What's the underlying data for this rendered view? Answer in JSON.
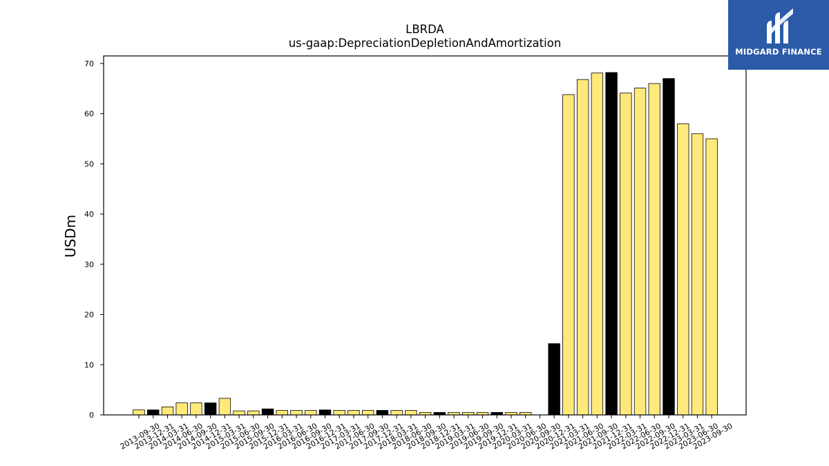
{
  "chart_data": {
    "type": "bar",
    "title": "LBRDA",
    "subtitle": "us-gaap:DepreciationDepletionAndAmortization",
    "ylabel": "USDm",
    "xlabel": "",
    "ylim": [
      0,
      71.5
    ],
    "yticks": [
      0,
      10,
      20,
      30,
      40,
      50,
      60,
      70
    ],
    "grid": false,
    "colors": {
      "quarter": "#ffe97a",
      "annual": "#000000",
      "edge": "#000000"
    },
    "categories": [
      "2013-09-30",
      "2013-12-31",
      "2014-03-31",
      "2014-06-30",
      "2014-09-30",
      "2014-12-31",
      "2015-03-31",
      "2015-06-30",
      "2015-09-30",
      "2015-12-31",
      "2016-03-31",
      "2016-06-30",
      "2016-09-30",
      "2016-12-31",
      "2017-03-31",
      "2017-06-30",
      "2017-09-30",
      "2017-12-31",
      "2018-03-31",
      "2018-06-30",
      "2018-09-30",
      "2018-12-31",
      "2019-03-31",
      "2019-06-30",
      "2019-09-30",
      "2019-12-31",
      "2020-03-31",
      "2020-06-30",
      "2020-09-30",
      "2020-12-31",
      "2021-03-31",
      "2021-06-30",
      "2021-09-30",
      "2021-12-31",
      "2022-03-31",
      "2022-06-30",
      "2022-09-30",
      "2022-12-31",
      "2023-03-31",
      "2023-06-30",
      "2023-09-30"
    ],
    "values": [
      1.0,
      1.0,
      1.6,
      2.4,
      2.4,
      2.4,
      3.3,
      0.8,
      0.8,
      1.2,
      0.9,
      0.9,
      0.9,
      1.0,
      0.9,
      0.9,
      0.9,
      0.9,
      0.9,
      0.9,
      0.5,
      0.5,
      0.5,
      0.5,
      0.5,
      0.5,
      0.5,
      0.5,
      0.0,
      14.2,
      63.8,
      66.8,
      68.1,
      68.2,
      64.1,
      65.1,
      66.0,
      67.0,
      58.0,
      56.0,
      55.0
    ],
    "annual": [
      false,
      true,
      false,
      false,
      false,
      true,
      false,
      false,
      false,
      true,
      false,
      false,
      false,
      true,
      false,
      false,
      false,
      true,
      false,
      false,
      false,
      true,
      false,
      false,
      false,
      true,
      false,
      false,
      false,
      true,
      false,
      false,
      false,
      true,
      false,
      false,
      false,
      true,
      false,
      false,
      false
    ]
  },
  "logo": {
    "text": "MIDGARD FINANCE",
    "background": "#2b5aa8",
    "icon": "midgard-m-logo-icon"
  }
}
